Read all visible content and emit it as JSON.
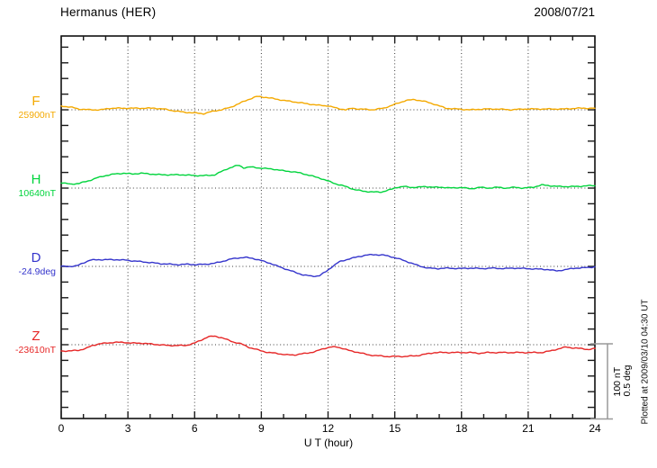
{
  "header": {
    "title": "Hermanus (HER)",
    "date": "2008/07/21"
  },
  "footnote": "Plotted at 2009/03/10 04:30 UT",
  "scale_bar": {
    "labels": [
      "100 nT",
      "0.5 deg"
    ],
    "color": "#999999"
  },
  "chart_data": {
    "type": "line",
    "title": "Hermanus (HER)",
    "date": "2008/07/21",
    "xlabel": "U T (hour)",
    "x_range": [
      0,
      24
    ],
    "x_ticks": [
      0,
      3,
      6,
      9,
      12,
      15,
      18,
      21,
      24
    ],
    "grid": "dotted vertical lines every 3 hours; dotted horizontal baseline per channel",
    "legend_position": "left margin channel labels",
    "scale": {
      "nT_per_division": 100,
      "deg_per_division": 0.5
    },
    "series": [
      {
        "name": "F",
        "baseline": "25900nT",
        "unit": "nT",
        "color": "#f4a900",
        "points": [
          [
            0,
            5
          ],
          [
            0.5,
            3
          ],
          [
            0.8,
            1
          ],
          [
            1.3,
            0
          ],
          [
            1.8,
            0
          ],
          [
            2.2,
            2
          ],
          [
            2.7,
            2
          ],
          [
            3.2,
            2
          ],
          [
            3.7,
            2
          ],
          [
            4.2,
            2
          ],
          [
            4.6,
            1
          ],
          [
            5.0,
            -1
          ],
          [
            5.5,
            -3
          ],
          [
            6.0,
            -4
          ],
          [
            6.4,
            -5
          ],
          [
            6.8,
            -2
          ],
          [
            7.2,
            0
          ],
          [
            7.6,
            3
          ],
          [
            8.0,
            8
          ],
          [
            8.4,
            13
          ],
          [
            8.8,
            17
          ],
          [
            9.2,
            16
          ],
          [
            9.6,
            14
          ],
          [
            10.0,
            12
          ],
          [
            10.5,
            10
          ],
          [
            11.0,
            8
          ],
          [
            11.5,
            6
          ],
          [
            12.0,
            5
          ],
          [
            12.4,
            2
          ],
          [
            12.8,
            0
          ],
          [
            13.1,
            2
          ],
          [
            13.4,
            1
          ],
          [
            14.0,
            0
          ],
          [
            14.5,
            2
          ],
          [
            15.0,
            7
          ],
          [
            15.5,
            12
          ],
          [
            15.9,
            13
          ],
          [
            16.3,
            11
          ],
          [
            16.8,
            7
          ],
          [
            17.3,
            2
          ],
          [
            17.8,
            1
          ],
          [
            18.4,
            0
          ],
          [
            19.0,
            1
          ],
          [
            19.6,
            1
          ],
          [
            20.2,
            0
          ],
          [
            20.8,
            1
          ],
          [
            21.4,
            1
          ],
          [
            22.0,
            1
          ],
          [
            22.6,
            1
          ],
          [
            23.2,
            2
          ],
          [
            23.6,
            2
          ],
          [
            24.0,
            2
          ]
        ]
      },
      {
        "name": "H",
        "baseline": "10640nT",
        "unit": "nT",
        "color": "#00d43c",
        "points": [
          [
            0,
            7
          ],
          [
            0.4,
            5
          ],
          [
            0.8,
            6
          ],
          [
            1.2,
            9
          ],
          [
            1.6,
            13
          ],
          [
            2.0,
            16
          ],
          [
            2.4,
            18
          ],
          [
            2.8,
            19
          ],
          [
            3.2,
            18
          ],
          [
            3.6,
            19
          ],
          [
            4.0,
            18
          ],
          [
            4.5,
            17
          ],
          [
            5.0,
            17
          ],
          [
            5.5,
            17
          ],
          [
            6.0,
            16
          ],
          [
            6.3,
            16
          ],
          [
            6.6,
            16
          ],
          [
            6.9,
            17
          ],
          [
            7.2,
            21
          ],
          [
            7.5,
            25
          ],
          [
            7.8,
            28
          ],
          [
            8.0,
            29
          ],
          [
            8.2,
            26
          ],
          [
            8.5,
            27
          ],
          [
            8.8,
            26
          ],
          [
            9.2,
            25
          ],
          [
            9.6,
            24
          ],
          [
            10.0,
            22
          ],
          [
            10.4,
            21
          ],
          [
            10.8,
            19
          ],
          [
            11.2,
            16
          ],
          [
            11.6,
            13
          ],
          [
            12.0,
            9
          ],
          [
            12.4,
            5
          ],
          [
            12.8,
            2
          ],
          [
            13.2,
            -2
          ],
          [
            13.6,
            -4
          ],
          [
            14.0,
            -5
          ],
          [
            14.4,
            -5
          ],
          [
            14.8,
            -2
          ],
          [
            15.1,
            1
          ],
          [
            15.4,
            2
          ],
          [
            15.7,
            1
          ],
          [
            16.0,
            1
          ],
          [
            16.4,
            2
          ],
          [
            16.8,
            1
          ],
          [
            17.2,
            1
          ],
          [
            17.6,
            0
          ],
          [
            18.0,
            1
          ],
          [
            18.4,
            -1
          ],
          [
            18.8,
            1
          ],
          [
            19.2,
            0
          ],
          [
            19.6,
            1
          ],
          [
            20.0,
            0
          ],
          [
            20.4,
            1
          ],
          [
            20.8,
            0
          ],
          [
            21.2,
            1
          ],
          [
            21.6,
            4
          ],
          [
            22.0,
            3
          ],
          [
            22.4,
            2
          ],
          [
            22.8,
            2
          ],
          [
            23.2,
            2
          ],
          [
            23.6,
            3
          ],
          [
            24.0,
            3
          ]
        ]
      },
      {
        "name": "D",
        "baseline": "-24.9deg",
        "unit": "deg",
        "color": "#3434cc",
        "points": [
          [
            0,
            0
          ],
          [
            0.4,
            0
          ],
          [
            0.7,
            0.003
          ],
          [
            1.0,
            0.023
          ],
          [
            1.3,
            0.04
          ],
          [
            1.7,
            0.043
          ],
          [
            2.1,
            0.043
          ],
          [
            2.5,
            0.043
          ],
          [
            2.9,
            0.04
          ],
          [
            3.3,
            0.034
          ],
          [
            3.7,
            0.029
          ],
          [
            4.1,
            0.023
          ],
          [
            4.5,
            0.017
          ],
          [
            4.9,
            0.014
          ],
          [
            5.3,
            0.011
          ],
          [
            5.7,
            0.014
          ],
          [
            6.1,
            0.011
          ],
          [
            6.5,
            0.014
          ],
          [
            6.9,
            0.02
          ],
          [
            7.3,
            0.034
          ],
          [
            7.7,
            0.049
          ],
          [
            8.0,
            0.055
          ],
          [
            8.3,
            0.057
          ],
          [
            8.6,
            0.052
          ],
          [
            9.0,
            0.037
          ],
          [
            9.4,
            0.02
          ],
          [
            9.7,
            0.003
          ],
          [
            10.1,
            -0.017
          ],
          [
            10.5,
            -0.037
          ],
          [
            10.9,
            -0.055
          ],
          [
            11.3,
            -0.063
          ],
          [
            11.6,
            -0.06
          ],
          [
            11.9,
            -0.034
          ],
          [
            12.2,
            0
          ],
          [
            12.5,
            0.029
          ],
          [
            12.9,
            0.046
          ],
          [
            13.3,
            0.06
          ],
          [
            13.7,
            0.072
          ],
          [
            14.1,
            0.075
          ],
          [
            14.5,
            0.072
          ],
          [
            14.9,
            0.06
          ],
          [
            15.3,
            0.043
          ],
          [
            15.7,
            0.023
          ],
          [
            16.1,
            0.003
          ],
          [
            16.5,
            -0.011
          ],
          [
            16.9,
            -0.014
          ],
          [
            17.4,
            -0.011
          ],
          [
            17.9,
            -0.014
          ],
          [
            18.4,
            -0.011
          ],
          [
            18.9,
            -0.014
          ],
          [
            19.4,
            -0.011
          ],
          [
            19.9,
            -0.014
          ],
          [
            20.4,
            -0.011
          ],
          [
            20.9,
            -0.014
          ],
          [
            21.4,
            -0.017
          ],
          [
            21.9,
            -0.02
          ],
          [
            22.3,
            -0.029
          ],
          [
            22.7,
            -0.02
          ],
          [
            23.1,
            -0.011
          ],
          [
            23.5,
            -0.009
          ],
          [
            24.0,
            -0.003
          ]
        ]
      },
      {
        "name": "Z",
        "baseline": "-23610nT",
        "unit": "nT",
        "color": "#e62626",
        "points": [
          [
            0,
            -8
          ],
          [
            0.4,
            -8
          ],
          [
            0.8,
            -7
          ],
          [
            1.1,
            -5
          ],
          [
            1.4,
            -1
          ],
          [
            1.7,
            1
          ],
          [
            2.0,
            2
          ],
          [
            2.4,
            3
          ],
          [
            2.8,
            3
          ],
          [
            3.2,
            2
          ],
          [
            3.6,
            2
          ],
          [
            4.0,
            1
          ],
          [
            4.4,
            0
          ],
          [
            4.8,
            -1
          ],
          [
            5.2,
            -1
          ],
          [
            5.6,
            -1
          ],
          [
            6.0,
            2
          ],
          [
            6.3,
            6
          ],
          [
            6.6,
            10
          ],
          [
            6.9,
            11
          ],
          [
            7.2,
            9
          ],
          [
            7.5,
            6
          ],
          [
            7.8,
            3
          ],
          [
            8.1,
            1
          ],
          [
            8.5,
            -4
          ],
          [
            8.9,
            -7
          ],
          [
            9.3,
            -10
          ],
          [
            9.7,
            -11
          ],
          [
            10.1,
            -13
          ],
          [
            10.5,
            -13
          ],
          [
            11.0,
            -11
          ],
          [
            11.4,
            -9
          ],
          [
            11.8,
            -5
          ],
          [
            12.1,
            -3
          ],
          [
            12.4,
            -3
          ],
          [
            12.7,
            -5
          ],
          [
            13.0,
            -8
          ],
          [
            13.4,
            -10
          ],
          [
            13.8,
            -13
          ],
          [
            14.2,
            -14
          ],
          [
            14.6,
            -15
          ],
          [
            15.0,
            -15
          ],
          [
            15.5,
            -15
          ],
          [
            16.0,
            -14
          ],
          [
            16.4,
            -12
          ],
          [
            16.8,
            -10
          ],
          [
            17.2,
            -10
          ],
          [
            17.6,
            -10
          ],
          [
            18.0,
            -10
          ],
          [
            18.4,
            -10
          ],
          [
            18.8,
            -11
          ],
          [
            19.2,
            -10
          ],
          [
            19.6,
            -10
          ],
          [
            20.0,
            -10
          ],
          [
            20.4,
            -10
          ],
          [
            20.8,
            -10
          ],
          [
            21.2,
            -10
          ],
          [
            21.6,
            -10
          ],
          [
            22.0,
            -8
          ],
          [
            22.4,
            -5
          ],
          [
            22.7,
            -3
          ],
          [
            23.0,
            -4
          ],
          [
            23.4,
            -5
          ],
          [
            23.7,
            -6
          ],
          [
            24.0,
            -5
          ]
        ]
      }
    ]
  }
}
